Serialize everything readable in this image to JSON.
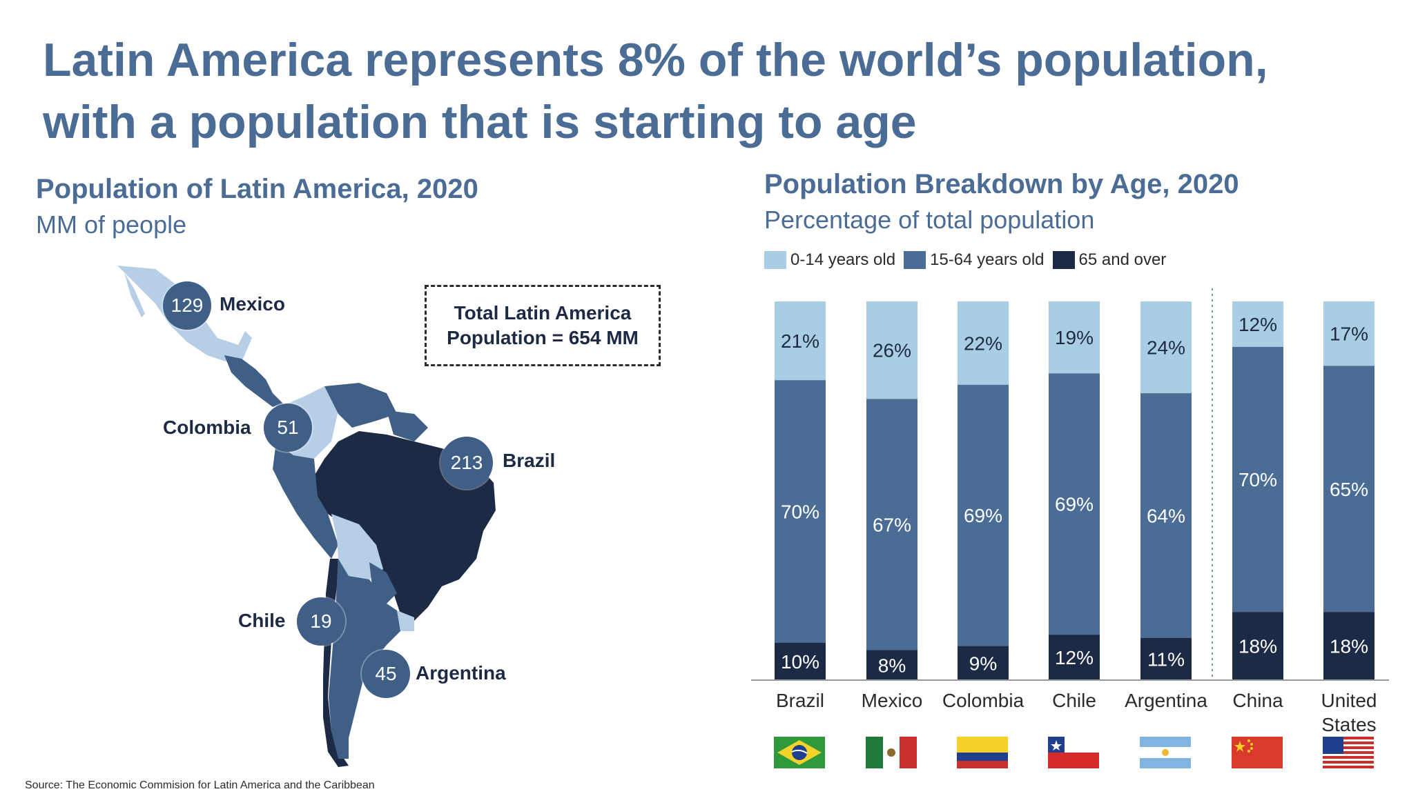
{
  "headline": {
    "line1": "Latin America represents 8% of the world’s population,",
    "line2": "with a population that is starting to age"
  },
  "left_panel": {
    "title": "Population of Latin America, 2020",
    "subtitle": "MM of people",
    "callout_line1": "Total Latin America",
    "callout_line2": "Population = 654 MM",
    "countries": [
      {
        "name": "Mexico",
        "value": "129"
      },
      {
        "name": "Colombia",
        "value": "51"
      },
      {
        "name": "Brazil",
        "value": "213"
      },
      {
        "name": "Chile",
        "value": "19"
      },
      {
        "name": "Argentina",
        "value": "45"
      }
    ]
  },
  "right_panel": {
    "title": "Population Breakdown by Age, 2020",
    "subtitle": "Percentage of total population"
  },
  "colors": {
    "title": "#4a6c95",
    "young": "#a9cde3",
    "working": "#4a6c95",
    "old": "#1d2a45",
    "map_dark": "#1d2a45",
    "map_mid": "#3f5f87",
    "map_light": "#b7cfe6"
  },
  "chart_data": {
    "type": "bar",
    "stacked": true,
    "categories": [
      "Brazil",
      "Mexico",
      "Colombia",
      "Chile",
      "Argentina",
      "China",
      "United States"
    ],
    "series": [
      {
        "name": "0-14 years old",
        "values": [
          21,
          26,
          22,
          19,
          24,
          12,
          17
        ],
        "color": "#a9cde3"
      },
      {
        "name": "15-64 years old",
        "values": [
          70,
          67,
          69,
          69,
          64,
          70,
          65
        ],
        "color": "#4a6c95"
      },
      {
        "name": "65 and over",
        "values": [
          10,
          8,
          9,
          12,
          11,
          18,
          18
        ],
        "color": "#1d2a45"
      }
    ],
    "labels": {
      "0-14 years old": [
        "21%",
        "26%",
        "22%",
        "19%",
        "24%",
        "12%",
        "17%"
      ],
      "15-64 years old": [
        "70%",
        "67%",
        "69%",
        "69%",
        "64%",
        "70%",
        "65%"
      ],
      "65 and over": [
        "10%",
        "8%",
        "9%",
        "12%",
        "11%",
        "18%",
        "18%"
      ]
    },
    "ylim": [
      0,
      100
    ],
    "separator_after": "Argentina",
    "legend": "top-left",
    "grid": false,
    "flags": [
      "brazil-flag",
      "mexico-flag",
      "colombia-flag",
      "chile-flag",
      "argentina-flag",
      "china-flag",
      "usa-flag"
    ]
  },
  "source": "Source: The Economic Commision for Latin America and the Caribbean"
}
